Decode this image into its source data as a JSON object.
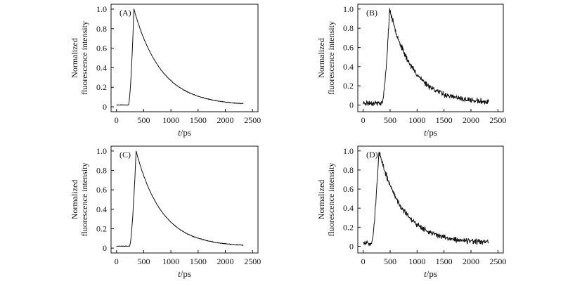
{
  "chart_data": [
    {
      "type": "line",
      "panel_label": "(A)",
      "xlabel_italic": "t",
      "xlabel_unit": "/ps",
      "ylabel_line1": "Normalized",
      "ylabel_line2": "fluorescence intensity",
      "xlim": [
        -100,
        2600
      ],
      "ylim": [
        -0.05,
        1.05
      ],
      "xticks": [
        0,
        500,
        1000,
        1500,
        2000,
        2500
      ],
      "yticks": [
        0,
        0.2,
        0.4,
        0.6,
        0.8,
        1.0
      ],
      "ytick_labels": [
        "0",
        "0.2",
        "0.4",
        "0.6",
        "0.8",
        "1.0"
      ],
      "x_start": 0,
      "x_end": 2330,
      "rise_start": 220,
      "peak_x": 320,
      "peak_y": 1.0,
      "baseline": 0.02,
      "decay_tau": 500,
      "tail_level": 0.015,
      "noise": 0.004,
      "seed": 11,
      "series": [
        {
          "name": "(A)",
          "values_note": "decay curve defined by parameters"
        }
      ]
    },
    {
      "type": "line",
      "panel_label": "(B)",
      "xlabel_italic": "t",
      "xlabel_unit": "/ps",
      "ylabel_line1": "Normalized",
      "ylabel_line2": "fluorescence intensity",
      "xlim": [
        -100,
        2600
      ],
      "ylim": [
        -0.07,
        1.05
      ],
      "xticks": [
        0,
        500,
        1000,
        1500,
        2000,
        2500
      ],
      "yticks": [
        0,
        0.2,
        0.4,
        0.6,
        0.8,
        1.0
      ],
      "ytick_labels": [
        "0",
        "0.2",
        "0.4",
        "0.6",
        "0.8",
        "1.0"
      ],
      "x_start": 0,
      "x_end": 2330,
      "rise_start": 350,
      "peak_x": 490,
      "peak_y": 1.0,
      "baseline": 0.02,
      "decay_tau": 430,
      "tail_level": 0.02,
      "noise": 0.035,
      "seed": 23,
      "series": [
        {
          "name": "(B)",
          "values_note": "noisy decay curve defined by parameters"
        }
      ]
    },
    {
      "type": "line",
      "panel_label": "(C)",
      "xlabel_italic": "t",
      "xlabel_unit": "/ps",
      "ylabel_line1": "Normalized",
      "ylabel_line2": "fluorescence intensity",
      "xlim": [
        -100,
        2600
      ],
      "ylim": [
        -0.05,
        1.05
      ],
      "xticks": [
        0,
        500,
        1000,
        1500,
        2000,
        2500
      ],
      "yticks": [
        0,
        0.2,
        0.4,
        0.6,
        0.8,
        1.0
      ],
      "ytick_labels": [
        "0",
        "0.2",
        "0.4",
        "0.6",
        "0.8",
        "1.0"
      ],
      "x_start": 0,
      "x_end": 2330,
      "rise_start": 240,
      "peak_x": 360,
      "peak_y": 1.0,
      "baseline": 0.02,
      "decay_tau": 470,
      "tail_level": 0.015,
      "noise": 0.004,
      "seed": 37,
      "series": [
        {
          "name": "(C)",
          "values_note": "decay curve defined by parameters"
        }
      ]
    },
    {
      "type": "line",
      "panel_label": "(D)",
      "xlabel_italic": "t",
      "xlabel_unit": "/ps",
      "ylabel_line1": "Normalized",
      "ylabel_line2": "fluorescence intensity",
      "xlim": [
        -100,
        2600
      ],
      "ylim": [
        -0.07,
        1.05
      ],
      "xticks": [
        0,
        500,
        1000,
        1500,
        2000,
        2500
      ],
      "yticks": [
        0,
        0.2,
        0.4,
        0.6,
        0.8,
        1.0
      ],
      "ytick_labels": [
        "0",
        "0.2",
        "0.4",
        "0.6",
        "0.8",
        "1.0"
      ],
      "x_start": 0,
      "x_end": 2330,
      "rise_start": 150,
      "peak_x": 290,
      "peak_y": 1.0,
      "baseline": 0.03,
      "decay_tau": 450,
      "tail_level": 0.03,
      "noise": 0.035,
      "seed": 51,
      "series": [
        {
          "name": "(D)",
          "values_note": "noisy decay curve defined by parameters"
        }
      ]
    }
  ]
}
